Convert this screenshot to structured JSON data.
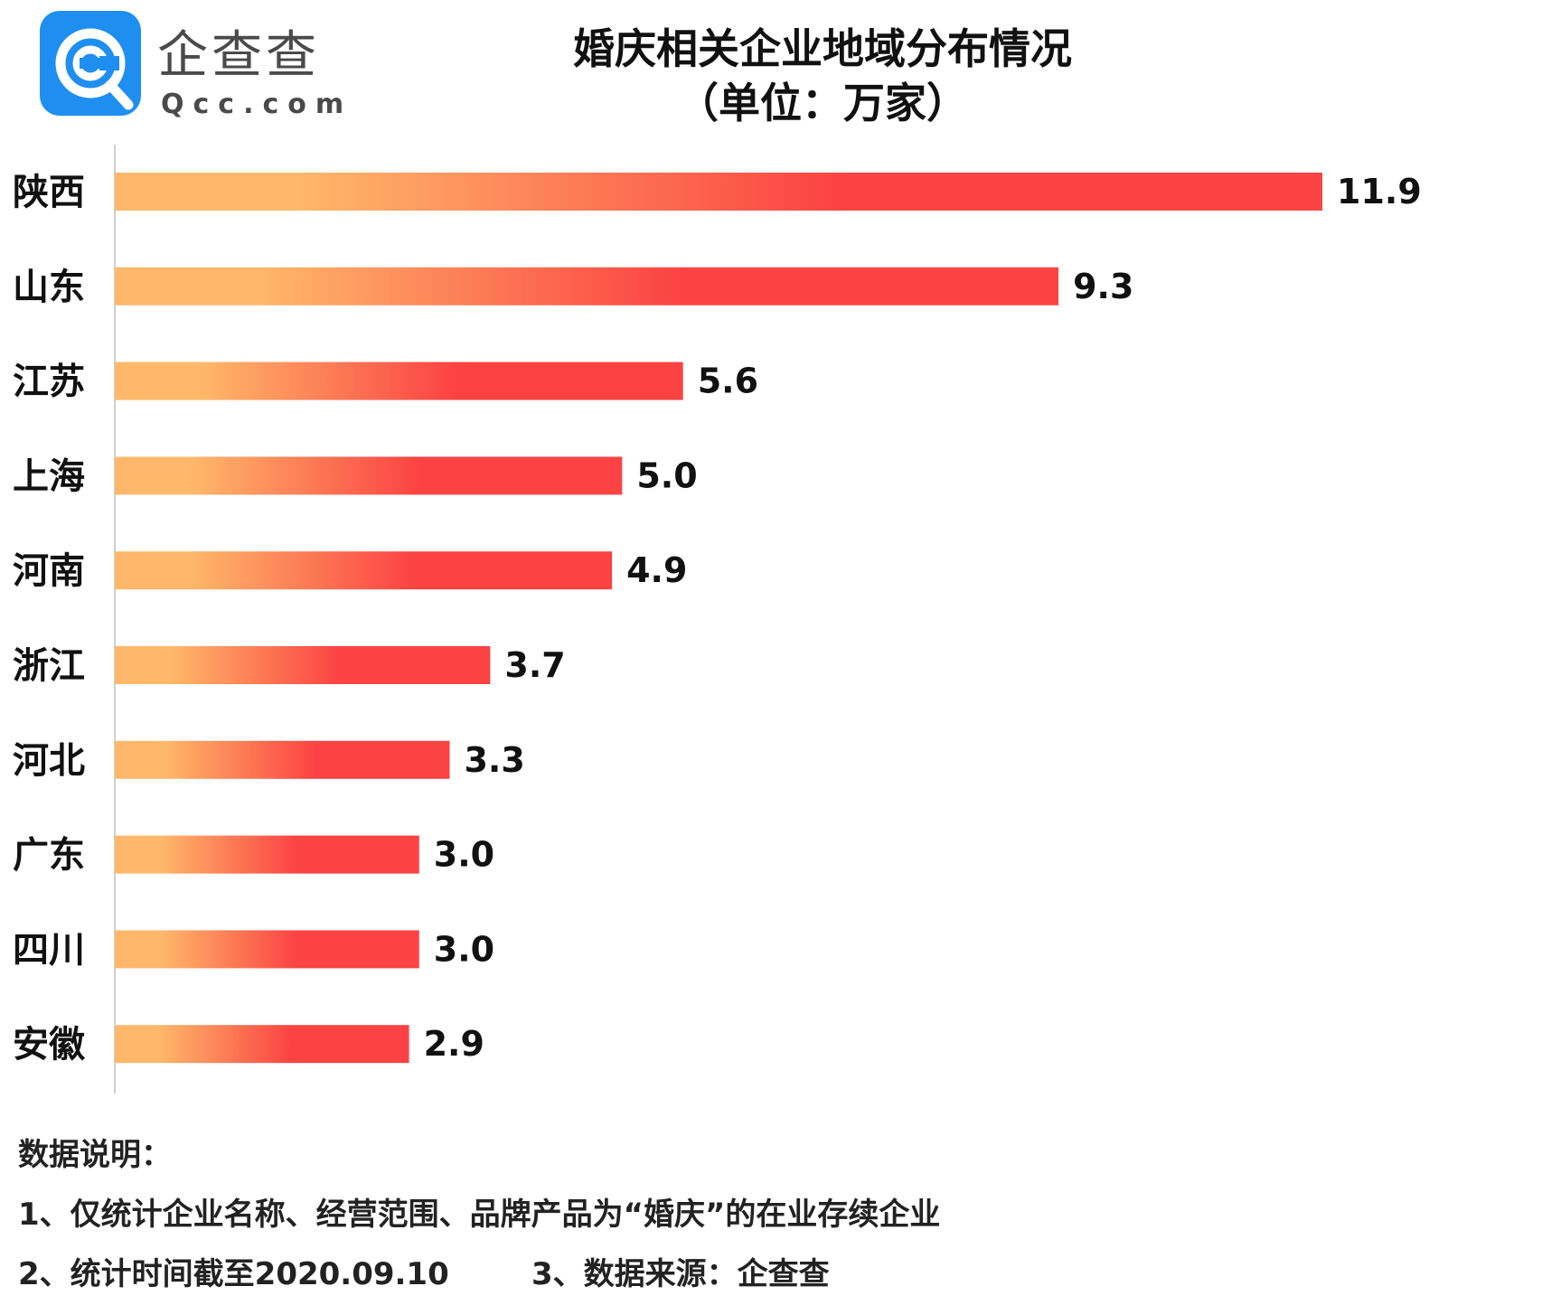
{
  "logo": {
    "name_cn": "企查查",
    "name_en": "Qcc.com"
  },
  "title": {
    "line1": "婚庆相关企业地域分布情况",
    "line2": "（单位：万家）"
  },
  "colors": {
    "bar_start": "#ffb86a",
    "bar_end": "#fb4343",
    "logo_blue": "#1e8ff0",
    "axis": "#cfcfcf"
  },
  "chart_data": {
    "type": "bar",
    "orientation": "horizontal",
    "title": "婚庆相关企业地域分布情况",
    "subtitle": "（单位：万家）",
    "xlabel": "",
    "ylabel": "",
    "unit": "万家",
    "xlim": [
      0,
      13
    ],
    "grid": false,
    "legend": "none",
    "categories": [
      "陕西",
      "山东",
      "江苏",
      "上海",
      "河南",
      "浙江",
      "河北",
      "广东",
      "四川",
      "安徽"
    ],
    "values": [
      11.9,
      9.3,
      5.6,
      5.0,
      4.9,
      3.7,
      3.3,
      3.0,
      3.0,
      2.9
    ],
    "value_labels": [
      "11.9",
      "9.3",
      "5.6",
      "5.0",
      "4.9",
      "3.7",
      "3.3",
      "3.0",
      "3.0",
      "2.9"
    ]
  },
  "notes": {
    "heading": "数据说明：",
    "line1": "1、仅统计企业名称、经营范围、品牌产品为“婚庆”的在业存续企业",
    "line2": "2、统计时间截至2020.09.10",
    "line3": "3、数据来源：企查查"
  }
}
